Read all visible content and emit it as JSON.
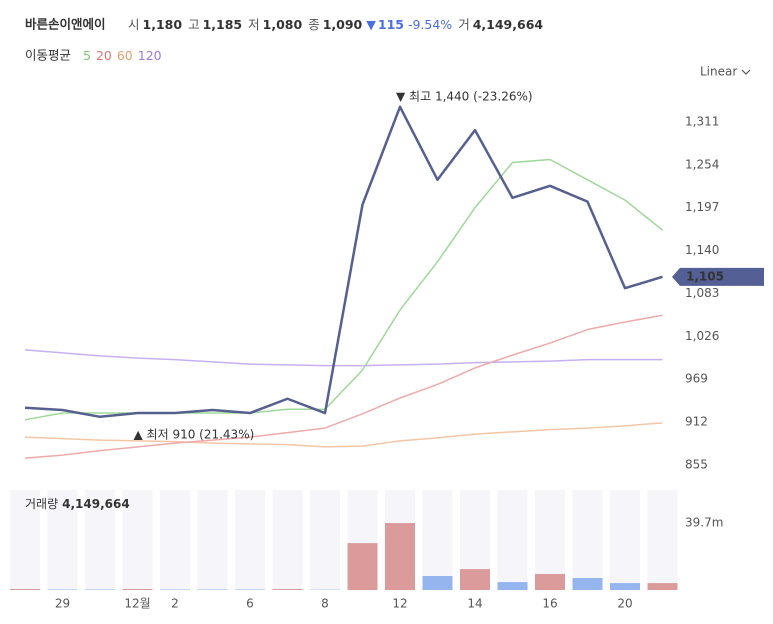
{
  "chart_data": {
    "type": "line",
    "title": "바른손이앤에이",
    "header": [
      {
        "label": "시",
        "value": "1,180"
      },
      {
        "label": "고",
        "value": "1,185"
      },
      {
        "label": "저",
        "value": "1,080"
      },
      {
        "label": "종",
        "value": "1,090"
      }
    ],
    "change": {
      "arrow": "▼",
      "value": "115",
      "percent": "-9.54%"
    },
    "volume_header": {
      "label": "거",
      "value": "4,149,664"
    },
    "ma_legend_title": "이동평균",
    "scale_mode": "Linear",
    "categories": [
      null,
      "29",
      null,
      "12월",
      "2",
      null,
      "6",
      null,
      "8",
      null,
      "12",
      null,
      "14",
      null,
      "16",
      null,
      "20",
      null
    ],
    "ylim": [
      835,
      1360
    ],
    "yticks": [
      {
        "value": 855,
        "label": "855"
      },
      {
        "value": 912,
        "label": "912"
      },
      {
        "value": 969,
        "label": "969"
      },
      {
        "value": 1026,
        "label": "1,026"
      },
      {
        "value": 1083,
        "label": "1,083"
      },
      {
        "value": 1140,
        "label": "1,140"
      },
      {
        "value": 1197,
        "label": "1,197"
      },
      {
        "value": 1254,
        "label": "1,254"
      },
      {
        "value": 1311,
        "label": "1,311"
      }
    ],
    "series": [
      {
        "name": "price",
        "color": "#55608f",
        "values": [
          931,
          928,
          919,
          924,
          924,
          928,
          924,
          943,
          924,
          1201,
          1331,
          1234,
          1300,
          1210,
          1226,
          1205,
          1090,
          1105
        ]
      },
      {
        "name": "5",
        "color": "#9fd898",
        "values": [
          915,
          924,
          924,
          924,
          924,
          924,
          924,
          929,
          929,
          981,
          1061,
          1125,
          1197,
          1257,
          1261,
          1234,
          1207,
          1167
        ]
      },
      {
        "name": "20",
        "color": "#efaaaa",
        "values": [
          864,
          868,
          874,
          879,
          884,
          888,
          892,
          898,
          904,
          923,
          944,
          962,
          984,
          1001,
          1017,
          1035,
          1045,
          1054
        ]
      },
      {
        "name": "60",
        "color": "#f3c6a6",
        "values": [
          892,
          890,
          888,
          887,
          886,
          884,
          883,
          882,
          879,
          880,
          887,
          891,
          896,
          899,
          902,
          904,
          907,
          911
        ]
      },
      {
        "name": "120",
        "color": "#c6b0f3",
        "values": [
          1008,
          1004,
          1000,
          997,
          995,
          992,
          989,
          988,
          987,
          987,
          988,
          989,
          991,
          992,
          993,
          995,
          995,
          995
        ]
      }
    ],
    "annotations": [
      {
        "text": "▼ 최고 1,440 (-23.26%)",
        "index": 10
      },
      {
        "text": "▲ 최저 910 (21.43%)",
        "index": 3
      }
    ],
    "last_price": {
      "value": 1105,
      "label": "1,105"
    },
    "volume": {
      "label": "거래량",
      "value_label": "4,149,664",
      "ylim": [
        0,
        59.3
      ],
      "yticks": [
        {
          "value": 39.7,
          "label": "39.7m"
        }
      ],
      "values": [
        0.6,
        0.3,
        0.3,
        0.6,
        0.3,
        0.3,
        0.3,
        0.6,
        0.2,
        27.8,
        39.7,
        8.3,
        12.4,
        4.7,
        9.5,
        7.1,
        4.1,
        4.1
      ],
      "colors": [
        "#dc9b9b",
        "#95b5ee",
        "#95b5ee",
        "#dc9b9b",
        "#95b5ee",
        "#95b5ee",
        "#95b5ee",
        "#dc9b9b",
        "#95b5ee",
        "#dc9b9b",
        "#dc9b9b",
        "#95b5ee",
        "#dc9b9b",
        "#95b5ee",
        "#dc9b9b",
        "#95b5ee",
        "#95b5ee",
        "#dc9b9b"
      ]
    }
  }
}
